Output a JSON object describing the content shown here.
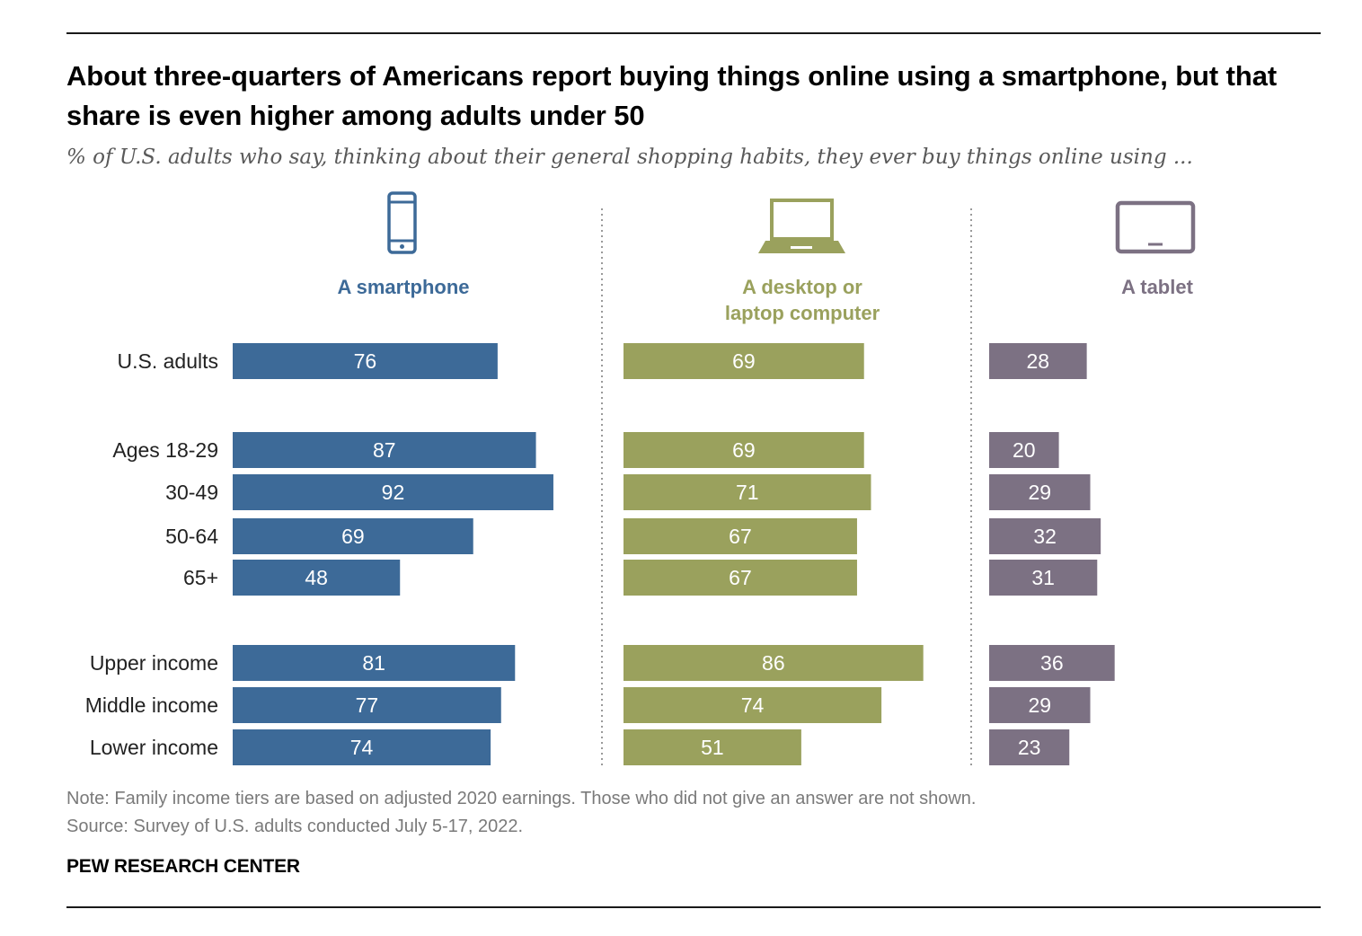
{
  "title": "About three-quarters of Americans report buying things online using a smartphone, but that share is even higher among adults under 50",
  "subtitle": "% of U.S. adults who say, thinking about their general shopping habits, they ever buy things online using ...",
  "note": "Note: Family income tiers are based on adjusted 2020 earnings. Those who did not give an answer are not shown.",
  "source": "Source: Survey of U.S. adults conducted July 5-17, 2022.",
  "brand": "PEW RESEARCH CENTER",
  "colors": {
    "smartphone": "#3d6a98",
    "desktop": "#9aa15d",
    "tablet": "#7c7183"
  },
  "chart_data": {
    "type": "bar",
    "orientation": "horizontal",
    "categories": [
      "U.S. adults",
      "Ages 18-29",
      "30-49",
      "50-64",
      "65+",
      "Upper income",
      "Middle income",
      "Lower income"
    ],
    "series": [
      {
        "name": "A smartphone",
        "icon": "smartphone-icon",
        "values": [
          76,
          87,
          92,
          69,
          48,
          81,
          77,
          74
        ]
      },
      {
        "name": "A desktop or laptop computer",
        "icon": "laptop-icon",
        "values": [
          69,
          69,
          71,
          67,
          67,
          86,
          74,
          51
        ]
      },
      {
        "name": "A tablet",
        "icon": "tablet-icon",
        "values": [
          28,
          20,
          29,
          32,
          31,
          36,
          29,
          23
        ]
      }
    ],
    "xlim": [
      0,
      100
    ]
  }
}
